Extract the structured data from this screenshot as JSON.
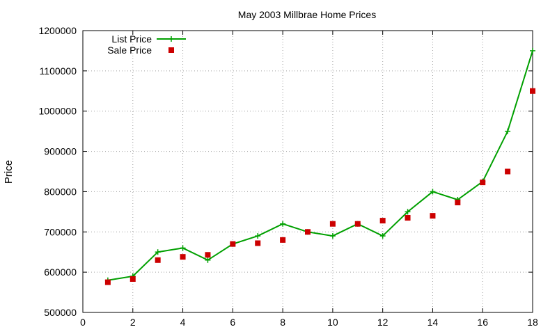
{
  "chart_data": {
    "type": "line",
    "title": "May 2003 Millbrae Home Prices",
    "xlabel": "",
    "ylabel": "Price",
    "xlim": [
      0,
      18
    ],
    "ylim": [
      500000,
      1200000
    ],
    "x_ticks": [
      0,
      2,
      4,
      6,
      8,
      10,
      12,
      14,
      16,
      18
    ],
    "y_ticks": [
      500000,
      600000,
      700000,
      800000,
      900000,
      1000000,
      1100000,
      1200000
    ],
    "grid": true,
    "legend_position": "top-left",
    "series": [
      {
        "name": "List Price",
        "style": "linespoints",
        "marker": "plus",
        "color": "#00a000",
        "x": [
          1,
          2,
          3,
          4,
          5,
          6,
          7,
          8,
          9,
          10,
          11,
          12,
          13,
          14,
          15,
          16,
          17,
          18
        ],
        "values": [
          580000,
          590000,
          650000,
          660000,
          630000,
          670000,
          690000,
          720000,
          700000,
          690000,
          720000,
          690000,
          750000,
          800000,
          780000,
          825000,
          950000,
          1150000
        ]
      },
      {
        "name": "Sale Price",
        "style": "points",
        "marker": "square",
        "color": "#cc0000",
        "x": [
          1,
          2,
          3,
          4,
          5,
          6,
          7,
          8,
          9,
          10,
          11,
          12,
          13,
          14,
          15,
          16,
          17,
          18
        ],
        "values": [
          575000,
          583000,
          630000,
          638000,
          643000,
          670000,
          672000,
          680000,
          700000,
          720000,
          720000,
          728000,
          735000,
          740000,
          773000,
          823000,
          850000,
          1050000
        ]
      }
    ]
  }
}
